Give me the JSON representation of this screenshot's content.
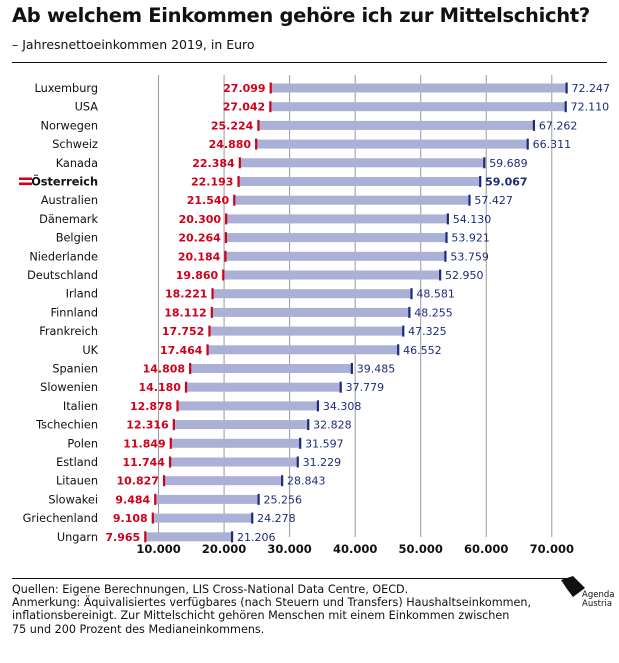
{
  "title": "Ab welchem Einkommen gehöre ich zur Mittelschicht?",
  "subtitle": "– Jahresnettoeinkommen 2019, in Euro",
  "notes": [
    "Quellen: Eigene Berechnungen, LIS Cross-National Data Centre, OECD.",
    "Anmerkung: Äquivalisiertes verfügbares (nach Steuern und Transfers) Haushaltseinkommen,",
    "inflationsbereinigt. Zur Mittelschicht gehören Menschen mit einem Einkommen zwischen",
    "75 und 200 Prozent des Medianeinkommens."
  ],
  "logo": {
    "line1": "Agenda",
    "line2": "Austria"
  },
  "colors": {
    "bar": "#aab0d6",
    "low": "#d0021b",
    "high": "#1c2c7c",
    "grid": "#999999"
  },
  "chart_data": {
    "type": "bar",
    "orientation": "horizontal-range",
    "xlim": [
      0,
      75000
    ],
    "ticks": [
      10000,
      20000,
      30000,
      40000,
      50000,
      60000,
      70000
    ],
    "tick_labels": [
      "10.000",
      "20.000",
      "30.000",
      "40.000",
      "50.000",
      "60.000",
      "70.000"
    ],
    "highlight": "Österreich",
    "highlight_icon": "austria-flag-icon",
    "categories": [
      "Luxemburg",
      "USA",
      "Norwegen",
      "Schweiz",
      "Kanada",
      "Österreich",
      "Australien",
      "Dänemark",
      "Belgien",
      "Niederlande",
      "Deutschland",
      "Irland",
      "Finnland",
      "Frankreich",
      "UK",
      "Spanien",
      "Slowenien",
      "Italien",
      "Tschechien",
      "Polen",
      "Estland",
      "Litauen",
      "Slowakei",
      "Griechenland",
      "Ungarn"
    ],
    "low": [
      27099,
      27042,
      25224,
      24880,
      22384,
      22193,
      21540,
      20300,
      20264,
      20184,
      19860,
      18221,
      18112,
      17752,
      17464,
      14808,
      14180,
      12878,
      12316,
      11849,
      11744,
      10827,
      9484,
      9108,
      7965
    ],
    "high": [
      72247,
      72110,
      67262,
      66311,
      59689,
      59067,
      57427,
      54130,
      53921,
      53759,
      52950,
      48581,
      48255,
      47325,
      46552,
      39485,
      37779,
      34308,
      32828,
      31597,
      31229,
      28843,
      25256,
      24278,
      21206
    ],
    "low_labels": [
      "27.099",
      "27.042",
      "25.224",
      "24.880",
      "22.384",
      "22.193",
      "21.540",
      "20.300",
      "20.264",
      "20.184",
      "19.860",
      "18.221",
      "18.112",
      "17.752",
      "17.464",
      "14.808",
      "14.180",
      "12.878",
      "12.316",
      "11.849",
      "11.744",
      "10.827",
      "9.484",
      "9.108",
      "7.965"
    ],
    "high_labels": [
      "72.247",
      "72.110",
      "67.262",
      "66.311",
      "59.689",
      "59.067",
      "57.427",
      "54.130",
      "53.921",
      "53.759",
      "52.950",
      "48.581",
      "48.255",
      "47.325",
      "46.552",
      "39.485",
      "37.779",
      "34.308",
      "32.828",
      "31.597",
      "31.229",
      "28.843",
      "25.256",
      "24.278",
      "21.206"
    ]
  }
}
